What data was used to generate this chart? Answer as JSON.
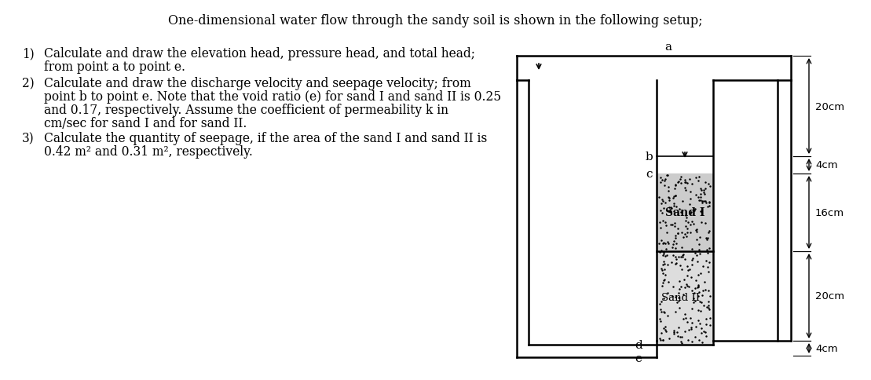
{
  "title": "One-dimensional water flow through the sandy soil is shown in the following setup;",
  "bg_color": "#ffffff",
  "text_color": "#000000",
  "item1_lines": [
    "Calculate and draw the elevation head, pressure head, and total head;",
    "from point a to point e."
  ],
  "item2_lines": [
    "Calculate and draw the discharge velocity and seepage velocity; from",
    "point b to point e. Note that the void ratio (e) for sand I and sand II is 0.25",
    "and 0.17, respectively. Assume the coefficient of permeability k in",
    "cm/sec for sand I and for sand II."
  ],
  "item3_lines": [
    "Calculate the quantity of seepage, if the area of the sand I and sand II is",
    "0.42 m² and 0.31 m², respectively."
  ],
  "dim_labels": [
    "20cm",
    "4cm",
    "16cm",
    "20cm",
    "4cm"
  ],
  "point_labels": [
    "a",
    "b",
    "c",
    "d",
    "e"
  ],
  "sand_labels": [
    "Sand I",
    "Sand II"
  ]
}
